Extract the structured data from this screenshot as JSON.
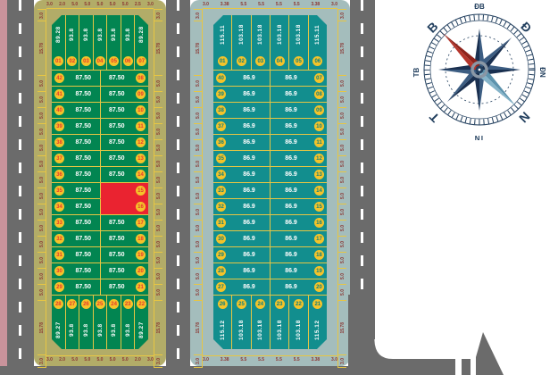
{
  "map_title": "Land plot subdivision map",
  "colors": {
    "road": "#6b6b6b",
    "plot_green": "#028551",
    "plot_teal": "#128e8e",
    "border_olive": "#b2ac68",
    "border_teal_gray": "#a4bdbc",
    "line_yellow": "#e7c643",
    "circle_yellow": "#f4c32a",
    "number_red": "#e63a2e",
    "number_teal": "#0c7f80",
    "sold_red": "#ea2330",
    "dim_text": "#8b3632",
    "compass_navy": "#223f5e",
    "compass_red": "#b5362c",
    "compass_blue": "#85b4c9"
  },
  "block_a": {
    "top_plots": [
      {
        "no": "01",
        "area": "89.28"
      },
      {
        "no": "02",
        "area": "93.8"
      },
      {
        "no": "03",
        "area": "93.8"
      },
      {
        "no": "04",
        "area": "93.8"
      },
      {
        "no": "05",
        "area": "93.8"
      },
      {
        "no": "06",
        "area": "93.8"
      },
      {
        "no": "07",
        "area": "89.28"
      }
    ],
    "rows": [
      {
        "left_no": "42",
        "left_area": "87.50",
        "right_area": "87.50",
        "right_no": "08",
        "sold": false
      },
      {
        "left_no": "41",
        "left_area": "87.50",
        "right_area": "87.50",
        "right_no": "09",
        "sold": false
      },
      {
        "left_no": "40",
        "left_area": "87.50",
        "right_area": "87.50",
        "right_no": "10",
        "sold": false
      },
      {
        "left_no": "39",
        "left_area": "87.50",
        "right_area": "87.50",
        "right_no": "11",
        "sold": false
      },
      {
        "left_no": "38",
        "left_area": "87.50",
        "right_area": "87.50",
        "right_no": "12",
        "sold": false
      },
      {
        "left_no": "37",
        "left_area": "87.50",
        "right_area": "87.50",
        "right_no": "13",
        "sold": false
      },
      {
        "left_no": "36",
        "left_area": "87.50",
        "right_area": "87.50",
        "right_no": "14",
        "sold": false
      },
      {
        "left_no": "35",
        "left_area": "87.50",
        "right_area": "",
        "right_no": "15",
        "sold": true
      },
      {
        "left_no": "34",
        "left_area": "87.50",
        "right_area": "",
        "right_no": "16",
        "sold": true
      },
      {
        "left_no": "33",
        "left_area": "87.50",
        "right_area": "87.50",
        "right_no": "17",
        "sold": false
      },
      {
        "left_no": "32",
        "left_area": "87.50",
        "right_area": "87.50",
        "right_no": "18",
        "sold": false
      },
      {
        "left_no": "31",
        "left_area": "87.50",
        "right_area": "87.50",
        "right_no": "19",
        "sold": false
      },
      {
        "left_no": "30",
        "left_area": "87.50",
        "right_area": "87.50",
        "right_no": "20",
        "sold": false
      },
      {
        "left_no": "29",
        "left_area": "87.50",
        "right_area": "87.50",
        "right_no": "21",
        "sold": false
      }
    ],
    "bottom_plots": [
      {
        "no": "28",
        "area": "89.27"
      },
      {
        "no": "27",
        "area": "93.8"
      },
      {
        "no": "26",
        "area": "93.8"
      },
      {
        "no": "25",
        "area": "93.8"
      },
      {
        "no": "24",
        "area": "93.8"
      },
      {
        "no": "23",
        "area": "93.8"
      },
      {
        "no": "22",
        "area": "89.27"
      }
    ],
    "dims_top": [
      "3.0",
      "2.0",
      "5.0",
      "5.0",
      "5.0",
      "5.0",
      "5.0",
      "2.5",
      "3.0"
    ],
    "dims_bottom": [
      "3.0",
      "2.0",
      "5.0",
      "5.0",
      "5.0",
      "5.0",
      "5.0",
      "2.0",
      "3.0"
    ],
    "dims_side": [
      "3.0",
      "15.78",
      "5.0",
      "5.0",
      "5.0",
      "5.0",
      "5.0",
      "5.0",
      "5.0",
      "5.0",
      "5.0",
      "5.0",
      "5.0",
      "5.0",
      "5.0",
      "5.0",
      "15.78",
      "3.0"
    ]
  },
  "block_b": {
    "top_plots": [
      {
        "no": "01",
        "area": "115.11"
      },
      {
        "no": "02",
        "area": "103.18"
      },
      {
        "no": "03",
        "area": "103.18"
      },
      {
        "no": "04",
        "area": "103.18"
      },
      {
        "no": "05",
        "area": "103.18"
      },
      {
        "no": "06",
        "area": "115.11"
      }
    ],
    "rows": [
      {
        "left_no": "40",
        "left_area": "86.9",
        "right_area": "86.9",
        "right_no": "07",
        "sold": false
      },
      {
        "left_no": "39",
        "left_area": "86.9",
        "right_area": "86.9",
        "right_no": "08",
        "sold": false
      },
      {
        "left_no": "38",
        "left_area": "86.9",
        "right_area": "86.9",
        "right_no": "09",
        "sold": false
      },
      {
        "left_no": "37",
        "left_area": "86.9",
        "right_area": "86.9",
        "right_no": "10",
        "sold": false
      },
      {
        "left_no": "36",
        "left_area": "86.9",
        "right_area": "86.9",
        "right_no": "11",
        "sold": false
      },
      {
        "left_no": "35",
        "left_area": "86.9",
        "right_area": "86.9",
        "right_no": "12",
        "sold": false
      },
      {
        "left_no": "34",
        "left_area": "86.9",
        "right_area": "86.9",
        "right_no": "13",
        "sold": false
      },
      {
        "left_no": "33",
        "left_area": "86.9",
        "right_area": "86.9",
        "right_no": "14",
        "sold": false
      },
      {
        "left_no": "32",
        "left_area": "86.9",
        "right_area": "86.9",
        "right_no": "15",
        "sold": false
      },
      {
        "left_no": "31",
        "left_area": "86.9",
        "right_area": "86.9",
        "right_no": "16",
        "sold": false
      },
      {
        "left_no": "30",
        "left_area": "86.9",
        "right_area": "86.9",
        "right_no": "17",
        "sold": false
      },
      {
        "left_no": "29",
        "left_area": "86.9",
        "right_area": "86.9",
        "right_no": "18",
        "sold": false
      },
      {
        "left_no": "28",
        "left_area": "86.9",
        "right_area": "86.9",
        "right_no": "19",
        "sold": false
      },
      {
        "left_no": "27",
        "left_area": "86.9",
        "right_area": "86.9",
        "right_no": "20",
        "sold": false
      }
    ],
    "bottom_plots": [
      {
        "no": "26",
        "area": "115.12"
      },
      {
        "no": "25",
        "area": "103.18"
      },
      {
        "no": "24",
        "area": "103.18"
      },
      {
        "no": "23",
        "area": "103.18"
      },
      {
        "no": "22",
        "area": "103.18"
      },
      {
        "no": "21",
        "area": "115.12"
      }
    ],
    "dims_top": [
      "3.0",
      "3.38",
      "5.5",
      "5.5",
      "5.5",
      "5.5",
      "3.38",
      "3.0"
    ],
    "dims_bottom": [
      "3.0",
      "3.38",
      "5.5",
      "5.5",
      "5.5",
      "5.5",
      "3.38",
      "3.0"
    ],
    "dims_side": [
      "3.0",
      "15.78",
      "5.0",
      "5.0",
      "5.0",
      "5.0",
      "5.0",
      "5.0",
      "5.0",
      "5.0",
      "5.0",
      "5.0",
      "5.0",
      "5.0",
      "5.0",
      "5.0",
      "15.78",
      "3.0"
    ]
  },
  "compass": {
    "labels": {
      "top": "ĐB",
      "top_left": "B",
      "top_right": "Đ",
      "left": "TB",
      "right": "ĐN",
      "bottom_left": "T",
      "bottom_right": "N",
      "bottom": "TN"
    }
  }
}
